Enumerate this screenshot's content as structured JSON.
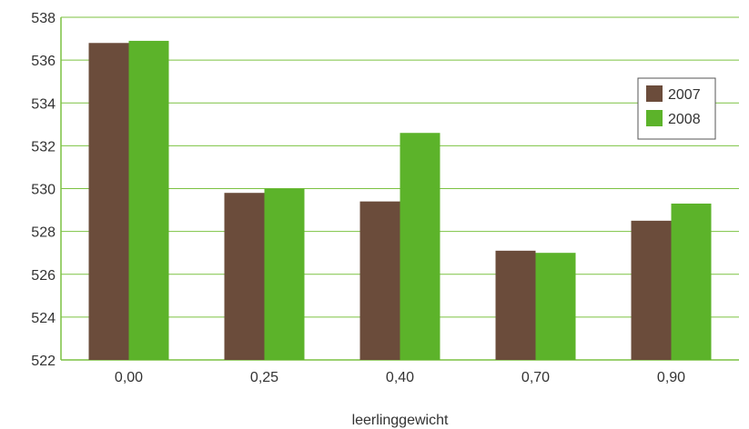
{
  "chart_data": {
    "type": "bar",
    "categories": [
      "0,00",
      "0,25",
      "0,40",
      "0,70",
      "0,90"
    ],
    "series": [
      {
        "name": "2007",
        "color": "#6b4c3b",
        "values": [
          536.8,
          529.8,
          529.4,
          527.1,
          528.5
        ]
      },
      {
        "name": "2008",
        "color": "#5cb32a",
        "values": [
          536.9,
          530.0,
          532.6,
          527.0,
          529.3
        ]
      }
    ],
    "xlabel": "leerlinggewicht",
    "ylabel": "",
    "ylim": [
      522,
      538
    ],
    "yticks": [
      "522",
      "524",
      "526",
      "528",
      "530",
      "532",
      "534",
      "536",
      "538"
    ],
    "grid": true,
    "grid_color": "#7cc242",
    "legend_position": "right"
  }
}
